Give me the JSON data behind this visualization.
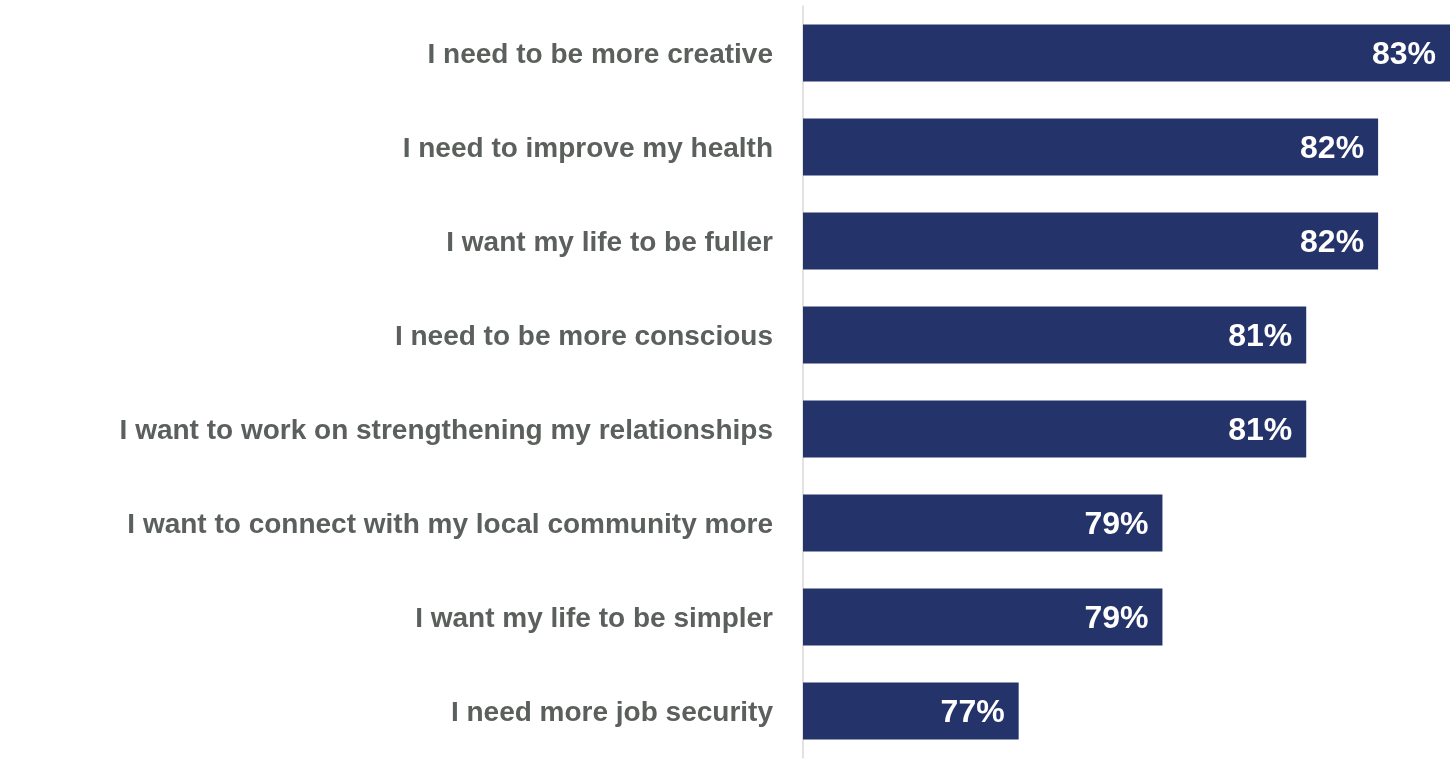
{
  "chart_data": {
    "type": "bar",
    "orientation": "horizontal",
    "categories": [
      "I need to be more creative",
      "I need to improve my health",
      "I want my life to be fuller",
      "I need to be more conscious",
      "I want to work on strengthening my relationships",
      "I want to connect with my local community more",
      "I want my life to be simpler",
      "I need more job security"
    ],
    "values": [
      83,
      82,
      82,
      81,
      81,
      79,
      79,
      77
    ],
    "value_labels": [
      "83%",
      "82%",
      "82%",
      "81%",
      "81%",
      "79%",
      "79%",
      "77%"
    ],
    "color": "#25336b",
    "xlim": [
      74,
      83
    ]
  }
}
